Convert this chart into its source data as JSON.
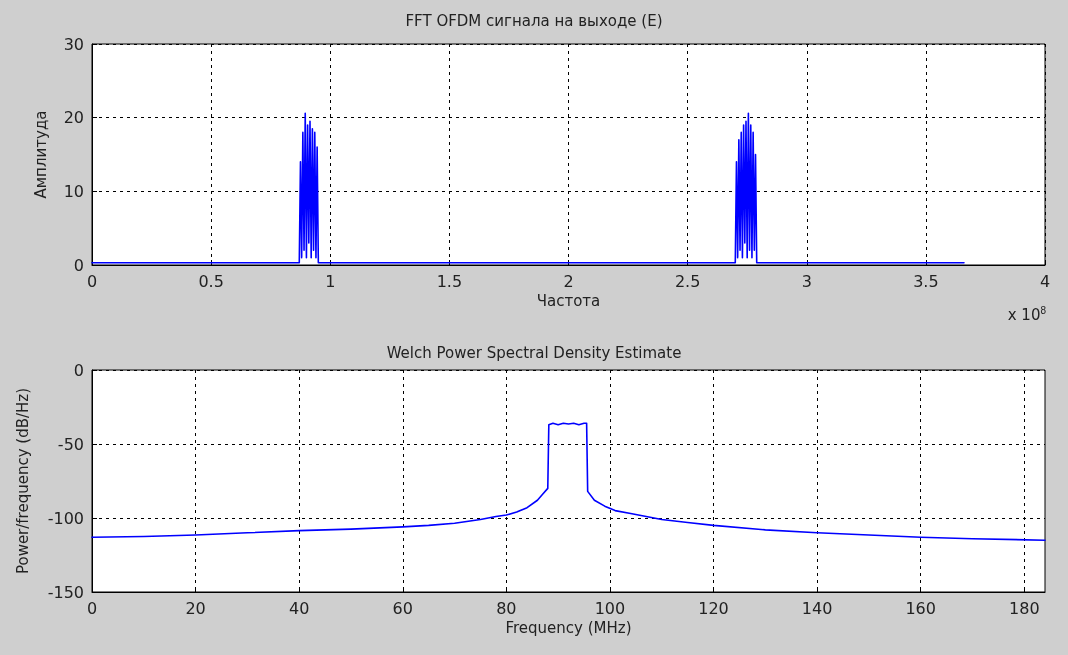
{
  "chart_data": [
    {
      "type": "line",
      "title": "FFT OFDM сигнала на выходе (E)",
      "xlabel": "Частота",
      "ylabel": "Амплитуда",
      "color": "#0000ff",
      "grid": true,
      "annotations": [
        "x 10$^{8}$"
      ],
      "x": [
        0,
        0.5,
        0.87,
        0.875,
        0.88,
        0.885,
        0.89,
        0.895,
        0.9,
        0.905,
        0.91,
        0.915,
        0.92,
        0.925,
        0.93,
        0.935,
        0.94,
        0.945,
        0.95,
        1.5,
        2.0,
        2.5,
        2.7,
        2.705,
        2.71,
        2.715,
        2.72,
        2.725,
        2.73,
        2.735,
        2.74,
        2.745,
        2.75,
        2.755,
        2.76,
        2.765,
        2.77,
        2.775,
        2.78,
        2.785,
        2.79,
        3.0,
        3.5,
        3.66
      ],
      "values": [
        0.3,
        0.3,
        0.3,
        14,
        1,
        18,
        2,
        20.6,
        1,
        19,
        3,
        19.5,
        1,
        18.5,
        2,
        18,
        1,
        16,
        0.3,
        0.3,
        0.3,
        0.3,
        0.3,
        14,
        1,
        17,
        2,
        18,
        1,
        19,
        3,
        19.5,
        1,
        20.6,
        2,
        19,
        1,
        18,
        2,
        15,
        0.3,
        0.3,
        0.3,
        0.3
      ],
      "xlim": [
        0,
        4
      ],
      "xticks": [
        0,
        0.5,
        1,
        1.5,
        2,
        2.5,
        3,
        3.5,
        4
      ],
      "ylim": [
        0,
        30
      ],
      "yticks": [
        0,
        10,
        20,
        30
      ]
    },
    {
      "type": "line",
      "title": "Welch Power Spectral Density Estimate",
      "xlabel": "Frequency (MHz)",
      "ylabel": "Power/frequency (dB/Hz)",
      "color": "#0000ff",
      "grid": true,
      "x": [
        0,
        10,
        20,
        30,
        40,
        50,
        60,
        65,
        70,
        75,
        78,
        80,
        82,
        84,
        86,
        87,
        88,
        88.2,
        89,
        90,
        91,
        92,
        93,
        94,
        95,
        95.5,
        95.7,
        97,
        99,
        101,
        104,
        107,
        110,
        115,
        120,
        130,
        140,
        150,
        160,
        170,
        184
      ],
      "values": [
        -113,
        -112.5,
        -111.5,
        -110,
        -108.5,
        -107.5,
        -106,
        -105,
        -103.5,
        -101,
        -99,
        -98,
        -96,
        -93,
        -88,
        -84,
        -80,
        -37,
        -36,
        -37,
        -36,
        -36.5,
        -36,
        -37,
        -36,
        -36,
        -82,
        -88,
        -92,
        -95,
        -97,
        -99,
        -101,
        -103,
        -105,
        -108,
        -110,
        -111.5,
        -113,
        -114,
        -115
      ],
      "xlim": [
        0,
        184
      ],
      "xticks": [
        0,
        20,
        40,
        60,
        80,
        100,
        120,
        140,
        160,
        180
      ],
      "ylim": [
        -150,
        0
      ],
      "yticks": [
        -150,
        -100,
        -50,
        0
      ]
    }
  ]
}
